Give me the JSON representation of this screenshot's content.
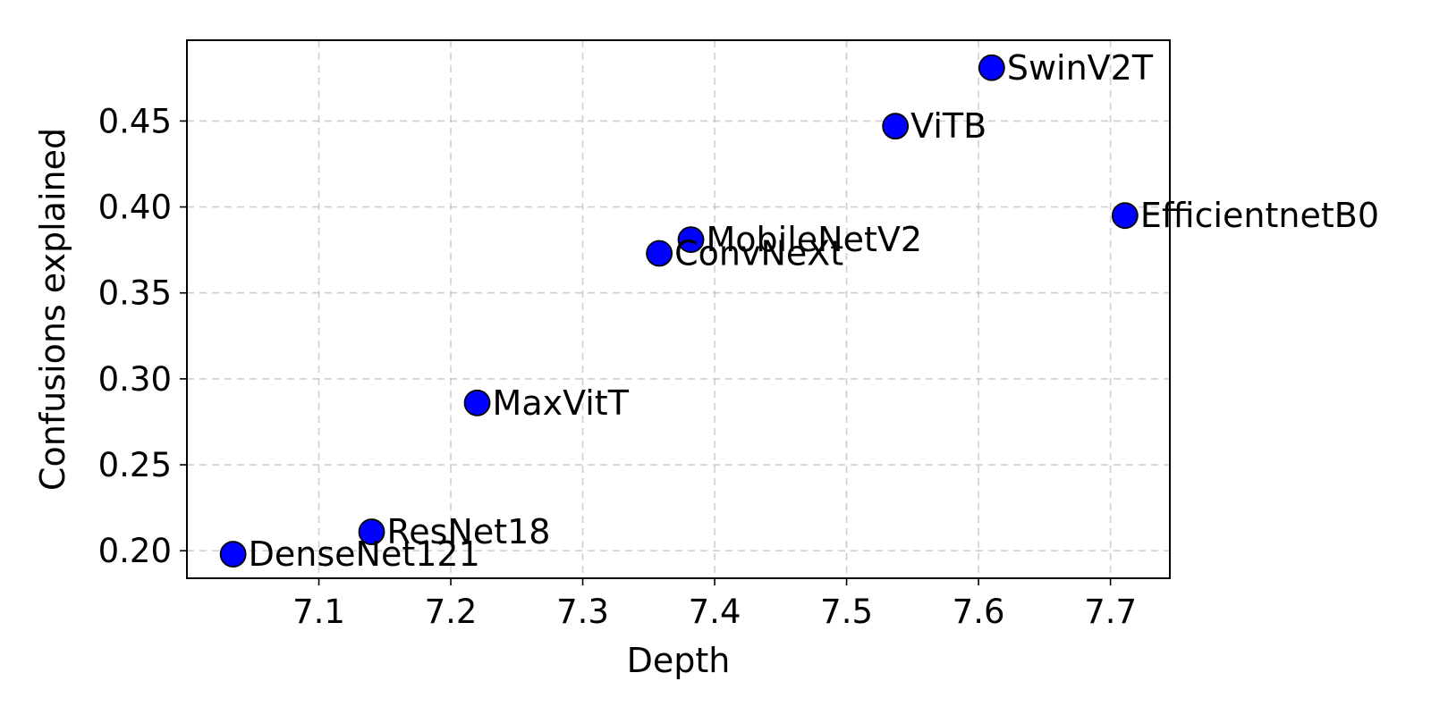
{
  "chart_data": {
    "type": "scatter",
    "title": "",
    "xlabel": "Depth",
    "ylabel": "Confusions explained",
    "xlim": [
      7.0,
      7.745
    ],
    "ylim": [
      0.184,
      0.497
    ],
    "xticks": [
      7.1,
      7.2,
      7.3,
      7.4,
      7.5,
      7.6,
      7.7
    ],
    "yticks": [
      0.2,
      0.25,
      0.3,
      0.35,
      0.4,
      0.45
    ],
    "xtick_labels": [
      "7.1",
      "7.2",
      "7.3",
      "7.4",
      "7.5",
      "7.6",
      "7.7"
    ],
    "ytick_labels": [
      "0.20",
      "0.25",
      "0.30",
      "0.35",
      "0.40",
      "0.45"
    ],
    "grid": true,
    "marker_color": "#0000ff",
    "marker_edge_color": "#000000",
    "points": [
      {
        "label": "DenseNet121",
        "x": 7.035,
        "y": 0.198
      },
      {
        "label": "ResNet18",
        "x": 7.14,
        "y": 0.211
      },
      {
        "label": "MaxVitT",
        "x": 7.22,
        "y": 0.286
      },
      {
        "label": "ConvNeXt",
        "x": 7.358,
        "y": 0.373
      },
      {
        "label": "MobileNetV2",
        "x": 7.382,
        "y": 0.381
      },
      {
        "label": "ViTB",
        "x": 7.537,
        "y": 0.447
      },
      {
        "label": "SwinV2T",
        "x": 7.61,
        "y": 0.481
      },
      {
        "label": "EfficientnetB0",
        "x": 7.711,
        "y": 0.395
      }
    ]
  }
}
